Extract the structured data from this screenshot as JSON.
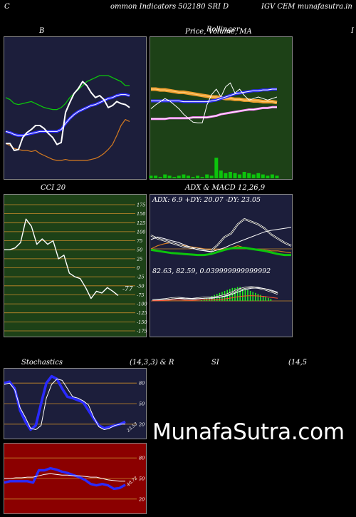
{
  "header": {
    "left": "C",
    "center": "ommon  Indicators 502180  SRI D",
    "right": "IGV CEM munafasutra.in"
  },
  "panels": {
    "bollinger": {
      "title": "B"
    },
    "price": {
      "title": "Price,  Volume,  MA",
      "overlay": "Bollinger"
    },
    "price_edge": {
      "title": "I"
    },
    "cci": {
      "title": "CCI 20",
      "last_label": "-77"
    },
    "adx": {
      "title": "ADX  & MACD 12,26,9",
      "adx_text": "ADX: 6.9  +DY: 20.07 -DY: 23.05",
      "macd_text": "82.63,  82.59,  0.039999999999992"
    },
    "stoch": {
      "title_left": "Stochastics",
      "title_mid": "(14,3,3) & R",
      "last_label": "23.53"
    },
    "rsi": {
      "title_mid": "SI",
      "title_right": "(14,5",
      "last_label": "40.72"
    }
  },
  "watermark": "MunafaSutra.com",
  "colors": {
    "navy": "#1c1e3b",
    "green_bg": "#1d4117",
    "red_bg": "#8b0000",
    "orange": "#d47a20",
    "blue": "#2a2aff",
    "green_line": "#0cc40c",
    "macd_green": "#22ee22"
  },
  "chart_data": [
    {
      "type": "line",
      "name": "bollinger",
      "ylim": [
        0,
        100
      ],
      "series": [
        {
          "name": "close",
          "values": [
            22,
            22,
            15,
            16,
            28,
            33,
            36,
            40,
            40,
            37,
            32,
            28,
            21,
            23,
            53,
            63,
            72,
            77,
            84,
            80,
            73,
            68,
            70,
            66,
            58,
            60,
            64,
            62,
            61,
            58
          ]
        },
        {
          "name": "upper",
          "values": [
            68,
            66,
            62,
            61,
            62,
            63,
            64,
            62,
            60,
            58,
            57,
            56,
            56,
            58,
            62,
            68,
            72,
            76,
            80,
            84,
            86,
            88,
            90,
            90,
            90,
            88,
            86,
            84,
            80,
            80
          ]
        },
        {
          "name": "middle",
          "values": [
            34,
            33,
            31,
            30,
            30,
            31,
            32,
            33,
            34,
            34,
            34,
            34,
            34,
            36,
            42,
            47,
            51,
            54,
            56,
            58,
            60,
            61,
            63,
            65,
            67,
            68,
            70,
            71,
            71,
            70
          ]
        },
        {
          "name": "lower",
          "values": [
            22,
            20,
            17,
            16,
            15,
            15,
            14,
            15,
            12,
            10,
            8,
            6,
            5,
            5,
            6,
            5,
            5,
            5,
            5,
            5,
            6,
            7,
            9,
            12,
            16,
            21,
            30,
            40,
            46,
            44
          ]
        }
      ]
    },
    {
      "type": "line",
      "name": "price_volume_ma",
      "ylim": [
        0,
        100
      ],
      "series": [
        {
          "name": "price",
          "values": [
            45,
            50,
            54,
            58,
            55,
            50,
            45,
            38,
            33,
            28,
            27,
            27,
            50,
            63,
            70,
            60,
            73,
            78,
            65,
            70,
            62,
            56,
            58,
            60,
            58,
            56,
            58,
            60
          ]
        },
        {
          "name": "upper_band",
          "values": [
            70,
            70,
            69,
            69,
            68,
            67,
            66,
            66,
            65,
            64,
            63,
            62,
            61,
            60,
            60,
            59,
            58,
            58,
            57,
            57,
            56,
            56,
            55,
            55,
            54,
            54,
            54,
            53
          ]
        },
        {
          "name": "middle_band",
          "values": [
            55,
            55,
            55,
            55,
            55,
            55,
            55,
            54,
            54,
            54,
            54,
            54,
            54,
            55,
            56,
            58,
            60,
            62,
            64,
            65,
            66,
            67,
            68,
            68,
            69,
            69,
            70,
            70
          ]
        },
        {
          "name": "lower_band",
          "values": [
            32,
            32,
            32,
            32,
            33,
            33,
            33,
            33,
            33,
            34,
            34,
            34,
            34,
            35,
            36,
            38,
            39,
            40,
            41,
            42,
            43,
            44,
            44,
            45,
            46,
            46,
            47,
            47
          ]
        },
        {
          "name": "volume",
          "values": [
            2,
            2,
            1,
            3,
            2,
            1,
            2,
            3,
            2,
            1,
            2,
            1,
            3,
            2,
            16,
            6,
            4,
            5,
            4,
            3,
            5,
            4,
            3,
            4,
            3,
            2,
            3,
            2
          ]
        }
      ]
    },
    {
      "type": "line",
      "name": "cci",
      "ylim": [
        -175,
        175
      ],
      "yticks": [
        175,
        150,
        125,
        100,
        75,
        50,
        25,
        0,
        -25,
        -50,
        -75,
        -100,
        -125,
        -150,
        -175
      ],
      "series": [
        {
          "name": "cci",
          "values": [
            50,
            50,
            55,
            70,
            135,
            115,
            65,
            80,
            65,
            75,
            25,
            35,
            -15,
            -25,
            -30,
            -55,
            -85,
            -65,
            -70,
            -55,
            -65,
            -77
          ]
        }
      ]
    },
    {
      "type": "line",
      "name": "adx_macd",
      "ylim": [
        0,
        100
      ],
      "series": [
        {
          "name": "plus_di",
          "values": [
            58,
            52,
            48,
            44,
            40,
            36,
            34,
            32,
            30,
            28,
            40,
            55,
            62,
            80,
            90,
            85,
            80,
            72,
            60,
            52,
            44,
            38
          ]
        },
        {
          "name": "minus_di",
          "values": [
            50,
            55,
            52,
            48,
            45,
            40,
            35,
            30,
            28,
            26,
            30,
            34,
            40,
            45,
            50,
            55,
            60,
            65,
            68,
            70,
            72,
            74
          ]
        },
        {
          "name": "adx",
          "values": [
            30,
            28,
            26,
            24,
            23,
            22,
            21,
            20,
            20,
            22,
            26,
            30,
            33,
            34,
            34,
            32,
            30,
            28,
            25,
            22,
            20,
            20
          ]
        },
        {
          "name": "orange_di",
          "values": [
            32,
            38,
            42,
            44,
            40,
            38,
            36,
            34,
            32,
            30,
            30,
            32,
            34,
            38,
            34,
            32,
            30,
            30,
            28,
            28,
            26,
            24
          ]
        }
      ]
    },
    {
      "type": "line",
      "name": "stochastics",
      "ylim": [
        0,
        100
      ],
      "yticks": [
        80,
        50,
        20
      ],
      "series": [
        {
          "name": "k",
          "values": [
            78,
            80,
            70,
            44,
            30,
            14,
            12,
            18,
            58,
            78,
            86,
            84,
            72,
            60,
            58,
            54,
            48,
            30,
            16,
            12,
            14,
            18,
            20,
            20
          ]
        },
        {
          "name": "d",
          "values": [
            80,
            82,
            72,
            40,
            24,
            12,
            18,
            50,
            80,
            90,
            86,
            72,
            60,
            58,
            55,
            52,
            40,
            28,
            18,
            14,
            16,
            18,
            20,
            23.53
          ]
        }
      ]
    },
    {
      "type": "line",
      "name": "rsi",
      "ylim": [
        0,
        100
      ],
      "yticks": [
        80,
        50,
        20
      ],
      "series": [
        {
          "name": "rsi_line",
          "values": [
            44,
            46,
            46,
            46,
            46,
            44,
            62,
            62,
            65,
            63,
            60,
            58,
            55,
            52,
            48,
            42,
            40,
            42,
            40,
            35,
            36,
            40.72
          ]
        },
        {
          "name": "rsi_short",
          "values": [
            50,
            50,
            51,
            51,
            52,
            52,
            54,
            56,
            57,
            56,
            55,
            55,
            54,
            54,
            53,
            52,
            52,
            50,
            48,
            47,
            46,
            46
          ]
        }
      ]
    }
  ]
}
